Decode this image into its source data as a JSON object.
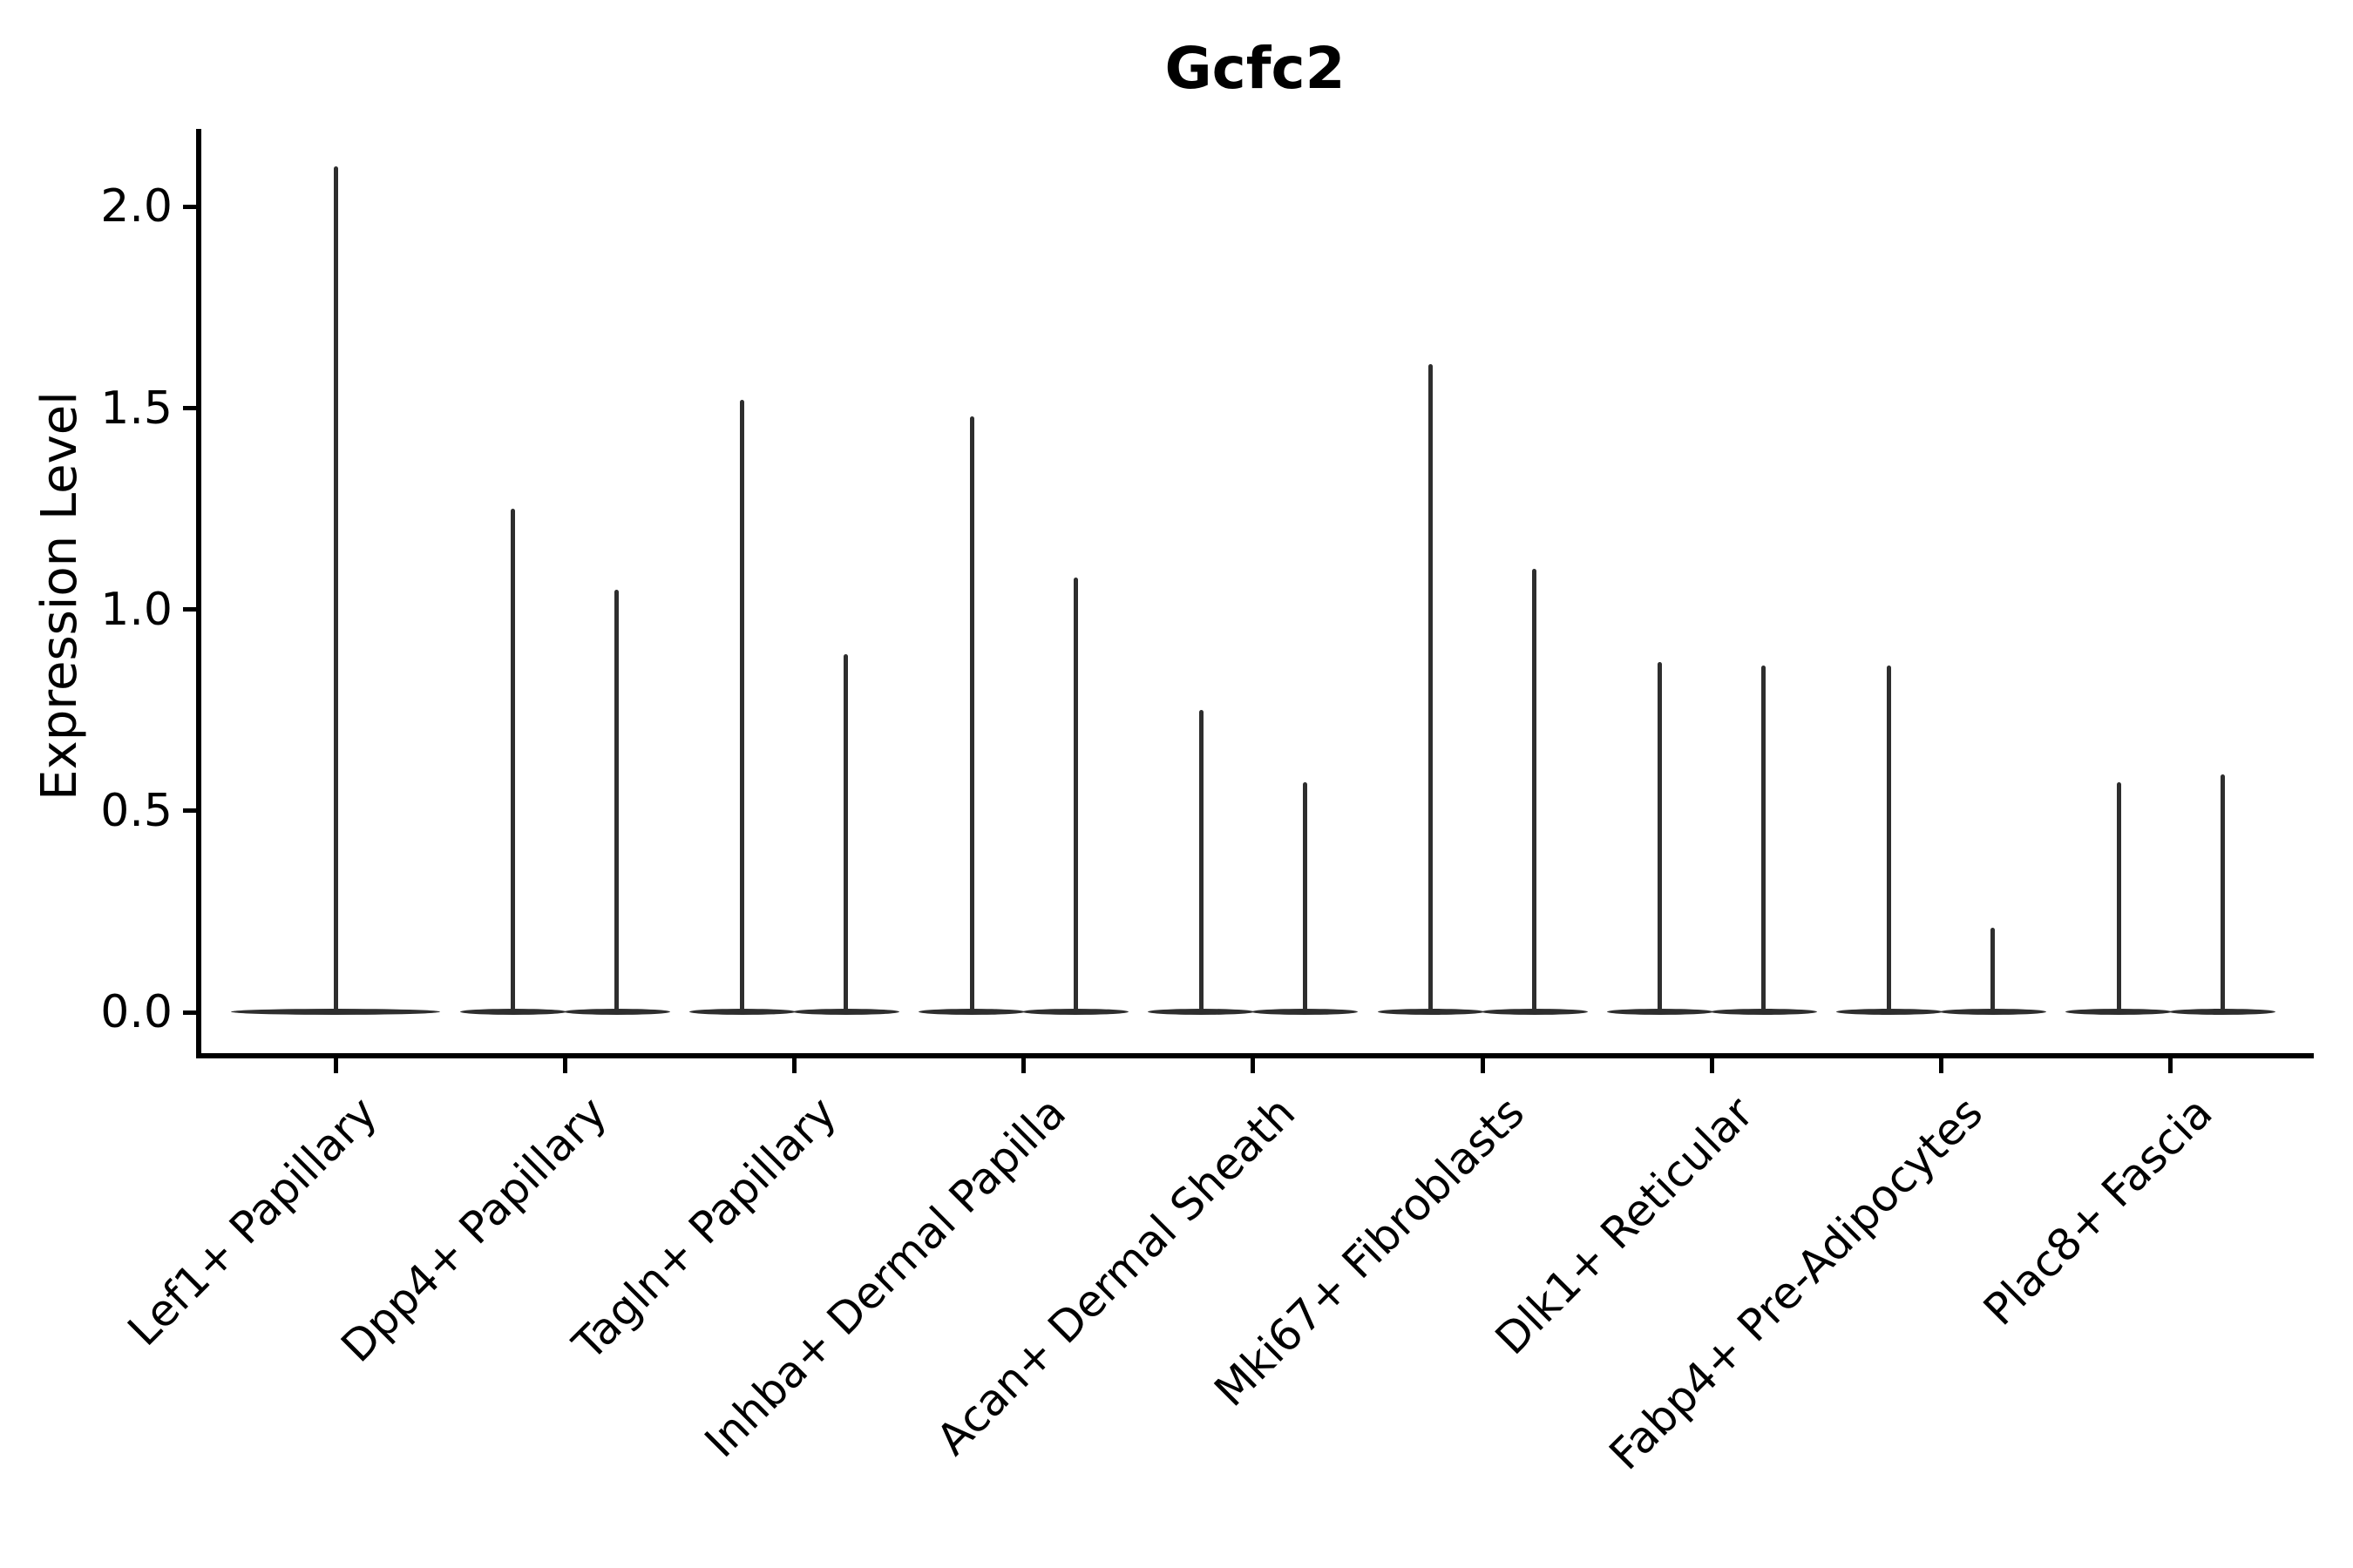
{
  "chart_data": {
    "type": "violin",
    "title": "Gcfc2",
    "ylabel": "Expression Level",
    "xlabel": "",
    "grid": false,
    "legend_position": "none",
    "ylim": [
      -0.1,
      2.19
    ],
    "y_ticks": [
      {
        "value": 0.0,
        "label": "0.0"
      },
      {
        "value": 0.5,
        "label": "0.5"
      },
      {
        "value": 1.0,
        "label": "1.0"
      },
      {
        "value": 1.5,
        "label": "1.5"
      },
      {
        "value": 2.0,
        "label": "2.0"
      }
    ],
    "categories": [
      {
        "label": "Lef1+ Papillary",
        "violin_max_values": [
          2.1
        ]
      },
      {
        "label": "Dpp4+ Papillary",
        "violin_max_values": [
          1.25,
          1.05
        ]
      },
      {
        "label": "Tagln+ Papillary",
        "violin_max_values": [
          1.52,
          0.89
        ]
      },
      {
        "label": "Inhba+ Dermal Papilla",
        "violin_max_values": [
          1.48,
          1.08
        ]
      },
      {
        "label": "Acan+ Dermal Sheath",
        "violin_max_values": [
          0.75,
          0.57
        ]
      },
      {
        "label": "Mki67+ Fibroblasts",
        "violin_max_values": [
          1.61,
          1.1
        ]
      },
      {
        "label": "Dlk1+ Reticular",
        "violin_max_values": [
          0.87,
          0.86
        ]
      },
      {
        "label": "Fabp4+ Pre-Adipocytes",
        "violin_max_values": [
          0.86,
          0.21
        ]
      },
      {
        "label": "Plac8+ Fascia",
        "violin_max_values": [
          0.57,
          0.59
        ]
      }
    ],
    "violin_baseline_value": 0.0,
    "violin_color": "#2e2e2e",
    "axis_color": "#000000"
  }
}
